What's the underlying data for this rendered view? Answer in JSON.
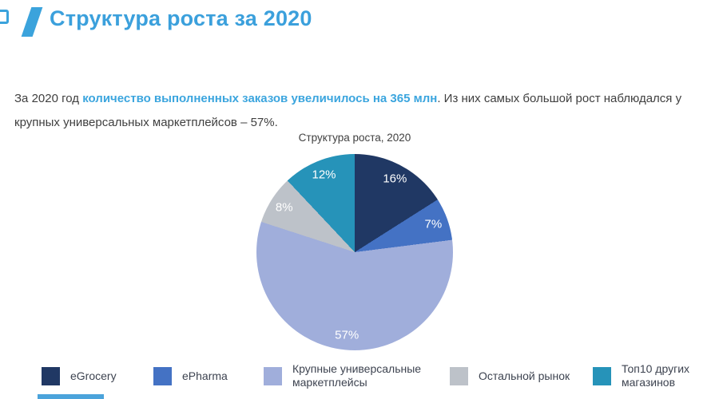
{
  "page": {
    "title": "Структура роста за 2020",
    "accent_color": "#3BA3DC"
  },
  "intro": {
    "text_before": "За 2020 год ",
    "highlight": "количество выполненных заказов увеличилось на 365 млн",
    "text_after": ". Из них самых большой рост наблюдался у крупных универсальных маркетплейсов – 57%."
  },
  "chart_data": {
    "type": "pie",
    "title": "Структура роста, 2020",
    "start_angle_deg": 0,
    "direction": "clockwise",
    "label_color": "#FFFFFF",
    "legend_position": "bottom",
    "slices": [
      {
        "label": "eGrocery",
        "value": 16,
        "display": "16%",
        "color": "#203864"
      },
      {
        "label": "ePharma",
        "value": 7,
        "display": "7%",
        "color": "#4472C4"
      },
      {
        "label": "Крупные универсальные маркетплейсы",
        "value": 57,
        "display": "57%",
        "color": "#A0AEDB"
      },
      {
        "label": "Остальной рынок",
        "value": 8,
        "display": "8%",
        "color": "#BDC2C9"
      },
      {
        "label": "Топ10 других магазинов",
        "value": 12,
        "display": "12%",
        "color": "#2693B9"
      }
    ]
  }
}
